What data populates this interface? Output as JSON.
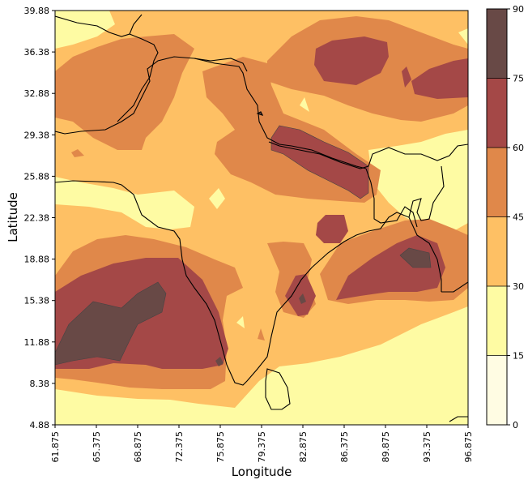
{
  "chart_data": {
    "type": "heatmap",
    "xlabel": "Longitude",
    "ylabel": "Latitude",
    "xlim": [
      61.875,
      96.875
    ],
    "ylim": [
      4.88,
      39.88
    ],
    "xticks": [
      "61.875",
      "65.375",
      "68.875",
      "72.375",
      "75.875",
      "79.375",
      "82.875",
      "86.375",
      "89.875",
      "93.375",
      "96.875"
    ],
    "yticks": [
      "4.88",
      "8.38",
      "11.88",
      "15.38",
      "18.88",
      "22.38",
      "25.88",
      "29.38",
      "32.88",
      "36.38",
      "39.88"
    ],
    "colorbar": {
      "levels": [
        0,
        15,
        30,
        45,
        60,
        75,
        90
      ],
      "tick_labels": [
        "0",
        "15",
        "30",
        "45",
        "60",
        "75",
        "90"
      ],
      "colors": [
        "#fffce3",
        "#fefba3",
        "#fec064",
        "#e0884a",
        "#a44847",
        "#684946"
      ]
    }
  }
}
